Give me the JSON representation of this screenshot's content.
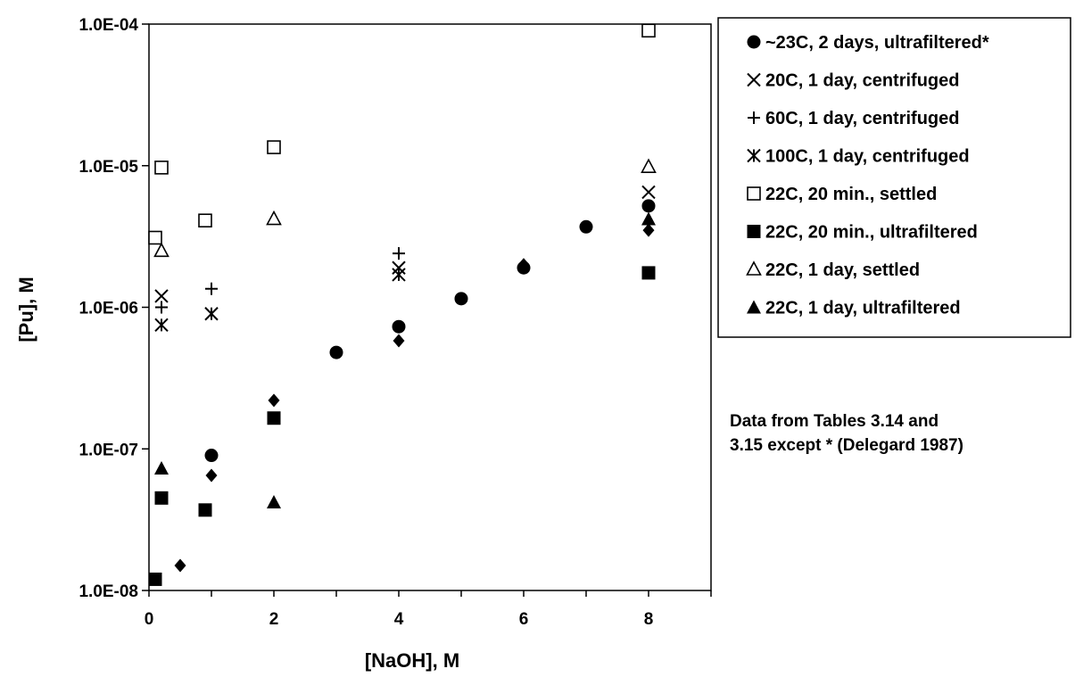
{
  "chart_data": {
    "type": "scatter",
    "xlabel": "[NaOH], M",
    "ylabel": "[Pu], M",
    "xlim": [
      0,
      9
    ],
    "ylim": [
      1e-08,
      0.0001
    ],
    "yscale": "log",
    "x_ticks": [
      "0",
      "2",
      "4",
      "6",
      "8"
    ],
    "x_tick_values": [
      0,
      2,
      4,
      6,
      8
    ],
    "y_ticks": [
      "1.0E-08",
      "1.0E-07",
      "1.0E-06",
      "1.0E-05",
      "1.0E-04"
    ],
    "y_tick_values": [
      1e-08,
      1e-07,
      1e-06,
      1e-05,
      0.0001
    ],
    "grid": false,
    "legend_position": "right",
    "series": [
      {
        "name": "~23C, 2 days, ultrafiltered*",
        "marker": "circle",
        "color": "#000000",
        "points": [
          [
            1,
            9e-08
          ],
          [
            3,
            4.8e-07
          ],
          [
            4,
            7.3e-07
          ],
          [
            5,
            1.15e-06
          ],
          [
            6,
            1.9e-06
          ],
          [
            7,
            3.7e-06
          ],
          [
            8,
            5.2e-06
          ]
        ]
      },
      {
        "name": "20C, 1 day, centrifuged",
        "marker": "x",
        "color": "#000000",
        "points": [
          [
            0.2,
            1.2e-06
          ],
          [
            4,
            1.9e-06
          ],
          [
            8,
            6.5e-06
          ]
        ]
      },
      {
        "name": "60C, 1 day, centrifuged",
        "marker": "plus",
        "color": "#000000",
        "points": [
          [
            0.2,
            1e-06
          ],
          [
            1,
            1.35e-06
          ],
          [
            4,
            2.4e-06
          ]
        ]
      },
      {
        "name": "100C, 1 day, centrifuged",
        "marker": "asterisk",
        "color": "#000000",
        "points": [
          [
            0.2,
            7.5e-07
          ],
          [
            1,
            9e-07
          ],
          [
            4,
            1.7e-06
          ]
        ]
      },
      {
        "name": "22C, 20 min., settled",
        "marker": "square-open",
        "color": "#000000",
        "points": [
          [
            0.1,
            3.1e-06
          ],
          [
            0.2,
            9.7e-06
          ],
          [
            0.9,
            4.1e-06
          ],
          [
            2,
            1.35e-05
          ],
          [
            8,
            9e-05
          ]
        ]
      },
      {
        "name": "22C, 20 min., ultrafiltered",
        "marker": "square-filled",
        "color": "#000000",
        "points": [
          [
            0.1,
            1.2e-08
          ],
          [
            0.2,
            4.5e-08
          ],
          [
            0.9,
            3.7e-08
          ],
          [
            2,
            1.65e-07
          ],
          [
            8,
            1.75e-06
          ]
        ]
      },
      {
        "name": "22C, 1 day, settled",
        "marker": "triangle-open",
        "color": "#000000",
        "points": [
          [
            0.2,
            2.5e-06
          ],
          [
            2,
            4.2e-06
          ],
          [
            8,
            9.8e-06
          ]
        ]
      },
      {
        "name": "22C, 1 day, ultrafiltered",
        "marker": "triangle-filled",
        "color": "#000000",
        "points": [
          [
            0.2,
            7.3e-08
          ],
          [
            2,
            4.2e-08
          ],
          [
            8,
            4.2e-06
          ]
        ]
      },
      {
        "name": "",
        "marker": "diamond",
        "color": "#000000",
        "points": [
          [
            0.5,
            1.5e-08
          ],
          [
            1,
            6.5e-08
          ],
          [
            2,
            2.2e-07
          ],
          [
            4,
            5.8e-07
          ],
          [
            6,
            2e-06
          ],
          [
            8,
            3.5e-06
          ]
        ]
      }
    ],
    "annotation": "Data from Tables 3.14 and 3.15 except * (Delegard 1987)"
  },
  "note": {
    "line1": "Data from Tables 3.14 and",
    "line2": "3.15 except * (Delegard 1987)"
  }
}
